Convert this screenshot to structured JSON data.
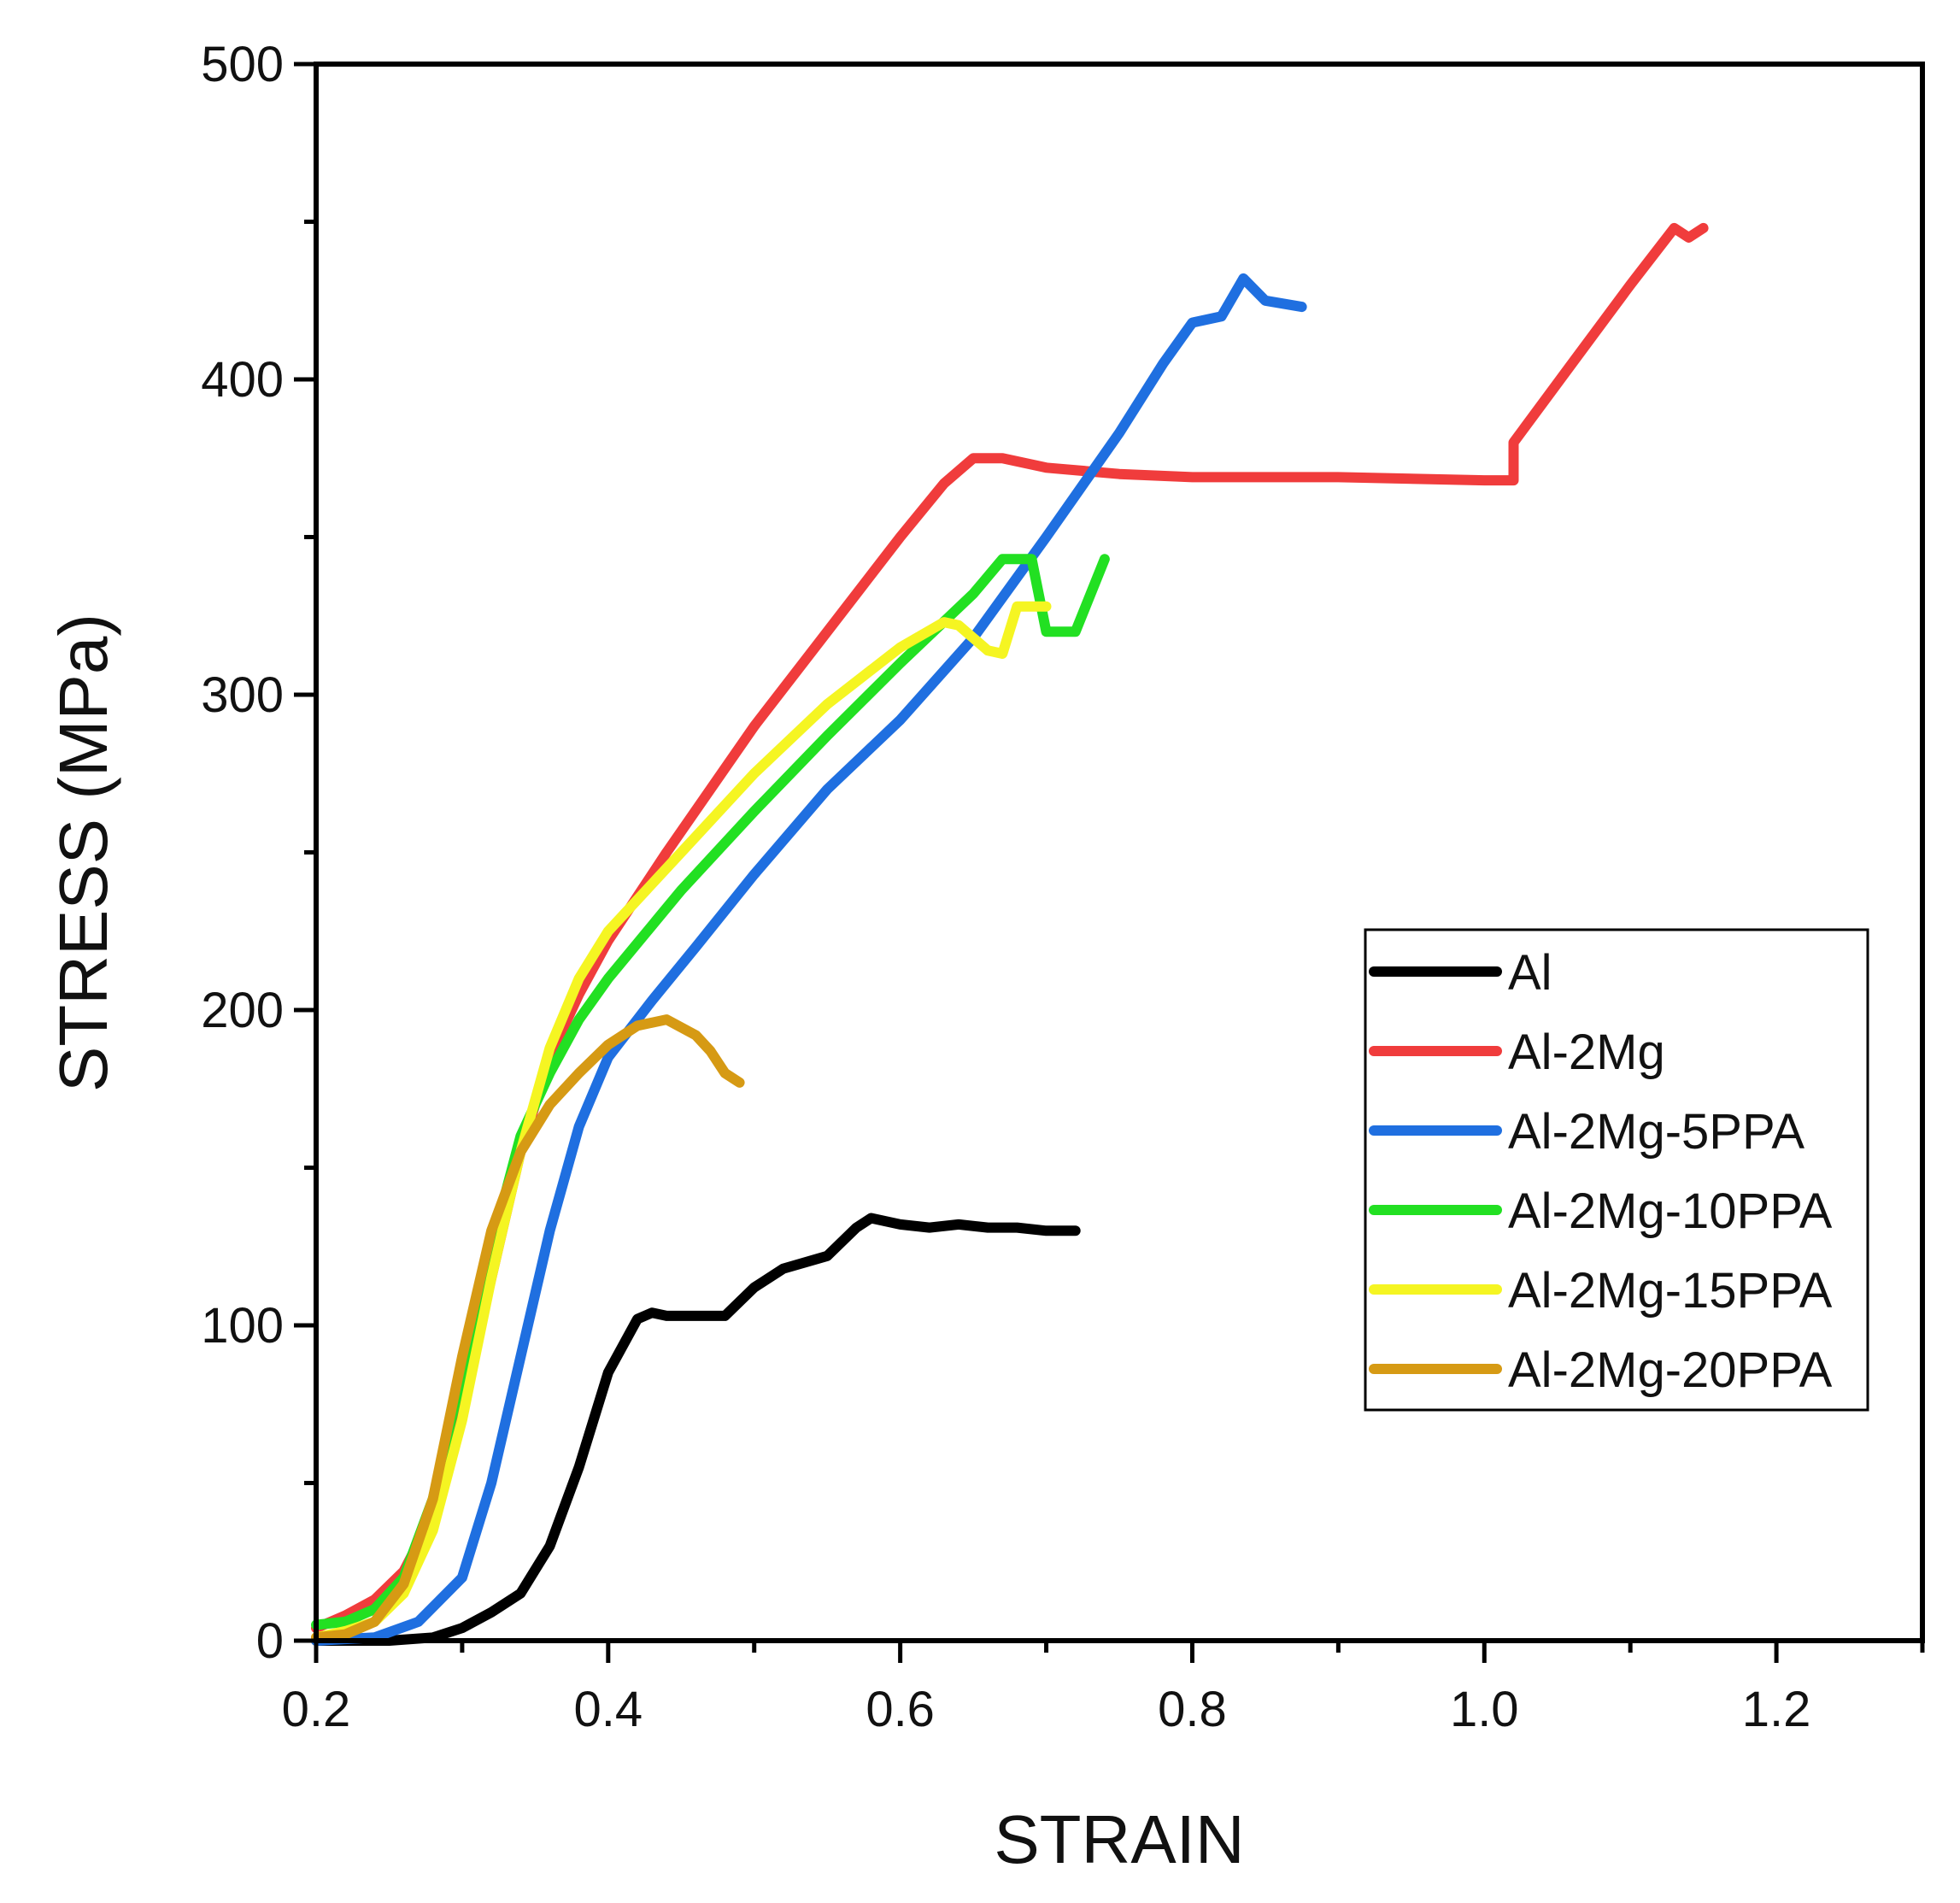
{
  "chart_data": {
    "type": "line",
    "title": "",
    "xlabel": "STRAIN",
    "ylabel": "STRESS (MPa)",
    "xlim": [
      0.2,
      1.3
    ],
    "ylim": [
      0,
      500
    ],
    "x_ticks": [
      0.2,
      0.4,
      0.6,
      0.8,
      1.0,
      1.2
    ],
    "x_tick_labels": [
      "0.2",
      "0.4",
      "0.6",
      "0.8",
      "1.0",
      "1.2"
    ],
    "y_ticks": [
      0,
      100,
      200,
      300,
      400,
      500
    ],
    "y_tick_labels": [
      "0",
      "100",
      "200",
      "300",
      "400",
      "500"
    ],
    "x_minor_step": 0.1,
    "y_minor_step": 50,
    "grid": false,
    "legend_position": "right-middle",
    "series": [
      {
        "name": "Al",
        "color": "#000000",
        "points": [
          [
            0.2,
            0
          ],
          [
            0.25,
            0
          ],
          [
            0.28,
            1
          ],
          [
            0.3,
            4
          ],
          [
            0.32,
            9
          ],
          [
            0.34,
            15
          ],
          [
            0.36,
            30
          ],
          [
            0.38,
            55
          ],
          [
            0.4,
            85
          ],
          [
            0.42,
            102
          ],
          [
            0.43,
            104
          ],
          [
            0.44,
            103
          ],
          [
            0.48,
            103
          ],
          [
            0.5,
            112
          ],
          [
            0.52,
            118
          ],
          [
            0.55,
            122
          ],
          [
            0.57,
            131
          ],
          [
            0.58,
            134
          ],
          [
            0.6,
            132
          ],
          [
            0.62,
            131
          ],
          [
            0.64,
            132
          ],
          [
            0.66,
            131
          ],
          [
            0.68,
            131
          ],
          [
            0.7,
            130
          ],
          [
            0.72,
            130
          ]
        ]
      },
      {
        "name": "Al-2Mg",
        "color": "#f03c3c",
        "points": [
          [
            0.2,
            4
          ],
          [
            0.22,
            8
          ],
          [
            0.24,
            13
          ],
          [
            0.26,
            22
          ],
          [
            0.28,
            40
          ],
          [
            0.3,
            75
          ],
          [
            0.32,
            115
          ],
          [
            0.34,
            155
          ],
          [
            0.36,
            185
          ],
          [
            0.38,
            205
          ],
          [
            0.4,
            222
          ],
          [
            0.44,
            250
          ],
          [
            0.5,
            290
          ],
          [
            0.55,
            320
          ],
          [
            0.6,
            350
          ],
          [
            0.63,
            367
          ],
          [
            0.65,
            375
          ],
          [
            0.67,
            375
          ],
          [
            0.7,
            372
          ],
          [
            0.75,
            370
          ],
          [
            0.8,
            369
          ],
          [
            0.9,
            369
          ],
          [
            1.0,
            368
          ],
          [
            1.02,
            368
          ],
          [
            1.02,
            380
          ],
          [
            1.06,
            405
          ],
          [
            1.1,
            430
          ],
          [
            1.13,
            448
          ],
          [
            1.14,
            445
          ],
          [
            1.15,
            448
          ]
        ]
      },
      {
        "name": "Al-2Mg-5PPA",
        "color": "#1f6fe0",
        "points": [
          [
            0.2,
            0
          ],
          [
            0.24,
            1
          ],
          [
            0.27,
            6
          ],
          [
            0.3,
            20
          ],
          [
            0.32,
            50
          ],
          [
            0.34,
            90
          ],
          [
            0.36,
            130
          ],
          [
            0.38,
            163
          ],
          [
            0.4,
            185
          ],
          [
            0.43,
            203
          ],
          [
            0.46,
            220
          ],
          [
            0.5,
            243
          ],
          [
            0.55,
            270
          ],
          [
            0.6,
            292
          ],
          [
            0.65,
            318
          ],
          [
            0.7,
            350
          ],
          [
            0.75,
            383
          ],
          [
            0.78,
            405
          ],
          [
            0.8,
            418
          ],
          [
            0.82,
            420
          ],
          [
            0.835,
            432
          ],
          [
            0.85,
            425
          ],
          [
            0.875,
            423
          ]
        ]
      },
      {
        "name": "Al-2Mg-10PPA",
        "color": "#22e022",
        "points": [
          [
            0.2,
            5
          ],
          [
            0.22,
            6
          ],
          [
            0.24,
            10
          ],
          [
            0.26,
            20
          ],
          [
            0.28,
            45
          ],
          [
            0.3,
            85
          ],
          [
            0.32,
            125
          ],
          [
            0.34,
            160
          ],
          [
            0.36,
            180
          ],
          [
            0.38,
            197
          ],
          [
            0.4,
            210
          ],
          [
            0.45,
            238
          ],
          [
            0.5,
            263
          ],
          [
            0.55,
            287
          ],
          [
            0.6,
            310
          ],
          [
            0.65,
            332
          ],
          [
            0.67,
            343
          ],
          [
            0.69,
            343
          ],
          [
            0.7,
            320
          ],
          [
            0.72,
            320
          ],
          [
            0.74,
            343
          ]
        ]
      },
      {
        "name": "Al-2Mg-15PPA",
        "color": "#f5f522",
        "points": [
          [
            0.2,
            1
          ],
          [
            0.22,
            3
          ],
          [
            0.24,
            6
          ],
          [
            0.26,
            15
          ],
          [
            0.28,
            35
          ],
          [
            0.3,
            70
          ],
          [
            0.32,
            115
          ],
          [
            0.34,
            155
          ],
          [
            0.36,
            188
          ],
          [
            0.38,
            210
          ],
          [
            0.4,
            225
          ],
          [
            0.45,
            250
          ],
          [
            0.5,
            275
          ],
          [
            0.55,
            297
          ],
          [
            0.6,
            315
          ],
          [
            0.63,
            323
          ],
          [
            0.64,
            322
          ],
          [
            0.66,
            314
          ],
          [
            0.67,
            313
          ],
          [
            0.68,
            328
          ],
          [
            0.7,
            328
          ]
        ]
      },
      {
        "name": "Al-2Mg-20PPA",
        "color": "#d69a14",
        "points": [
          [
            0.2,
            1
          ],
          [
            0.22,
            2
          ],
          [
            0.24,
            6
          ],
          [
            0.26,
            18
          ],
          [
            0.28,
            45
          ],
          [
            0.3,
            90
          ],
          [
            0.32,
            130
          ],
          [
            0.34,
            155
          ],
          [
            0.36,
            170
          ],
          [
            0.38,
            180
          ],
          [
            0.4,
            189
          ],
          [
            0.42,
            195
          ],
          [
            0.44,
            197
          ],
          [
            0.46,
            192
          ],
          [
            0.47,
            187
          ],
          [
            0.48,
            180
          ],
          [
            0.49,
            177
          ]
        ]
      }
    ]
  }
}
